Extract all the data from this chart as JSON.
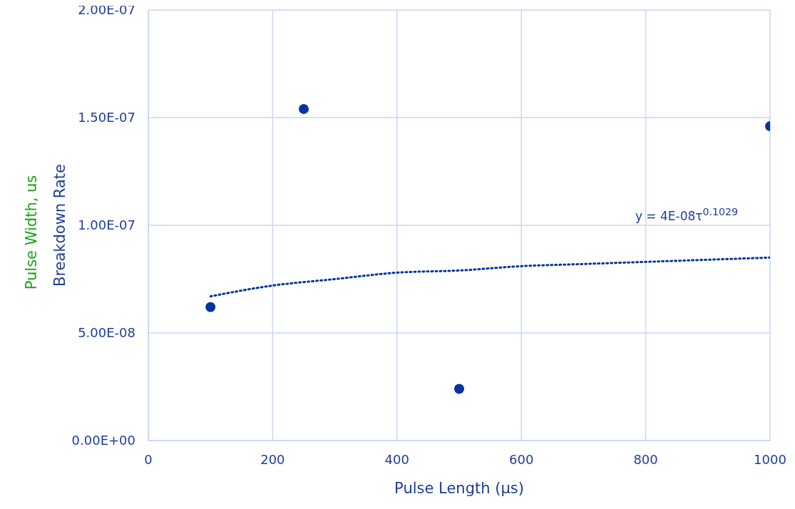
{
  "chart_data": {
    "type": "scatter",
    "xlabel": "Pulse Length (µs)",
    "ylabel": "Breakdown Rate",
    "annotations": [
      "Pulse Width, us",
      "y = 4E-08τ$^{0.1029}$"
    ],
    "series": [
      {
        "type": "scatter",
        "color": "#00349e",
        "marker": "circle",
        "x": [
          100,
          250,
          500,
          1000
        ],
        "values": [
          6.2e-08,
          1.54e-07,
          2.4e-08,
          1.46e-07
        ]
      },
      {
        "type": "line",
        "color": "#00349e",
        "marker": "none",
        "line_style": "dotted",
        "x": [
          100,
          200,
          300,
          400,
          500,
          600,
          700,
          800,
          900,
          1000
        ],
        "values": [
          6.7e-08,
          7.2e-08,
          7.5e-08,
          7.8e-08,
          7.9e-08,
          8.1e-08,
          8.2e-08,
          8.3e-08,
          8.4e-08,
          8.5e-08
        ]
      }
    ],
    "xlim": [
      0,
      1000
    ],
    "xticks": [
      0,
      200,
      400,
      600,
      800,
      1000
    ],
    "ylim": [
      0,
      2e-07
    ],
    "yticks": [
      {
        "value": 0,
        "label": "0.00E+00"
      },
      {
        "value": 5e-08,
        "label": "5.00E-08"
      },
      {
        "value": 1e-07,
        "label": "1.00E-07"
      },
      {
        "value": 1.5e-07,
        "label": "1.50E-07"
      },
      {
        "value": 2e-07,
        "label": "2.00E-07"
      }
    ],
    "grid": true
  }
}
